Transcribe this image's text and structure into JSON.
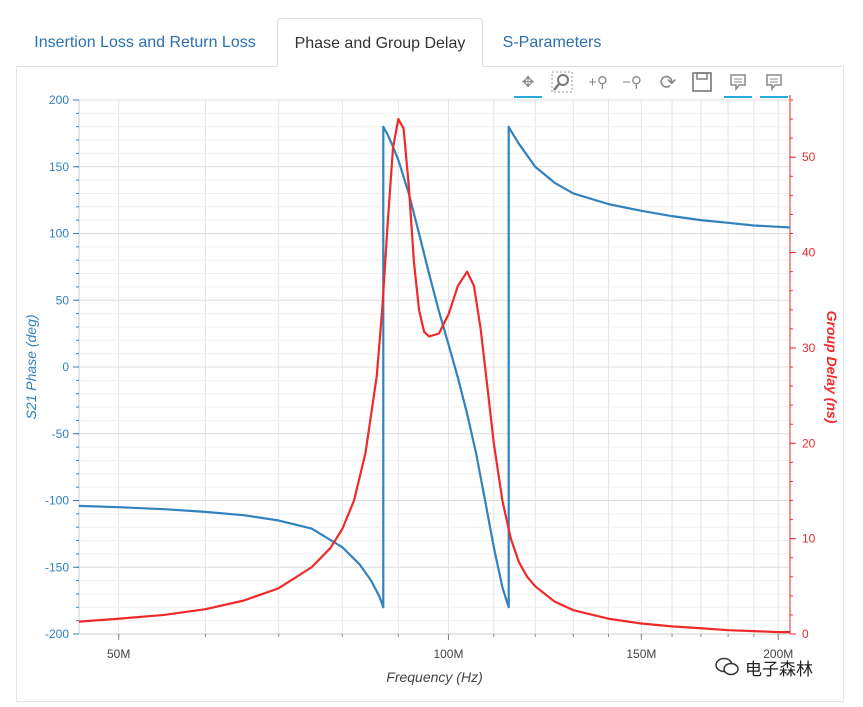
{
  "tabs": [
    {
      "label": "Insertion Loss and Return Loss",
      "active": false
    },
    {
      "label": "Phase and Group Delay",
      "active": true
    },
    {
      "label": "S-Parameters",
      "active": false
    }
  ],
  "toolbar": {
    "tools": [
      "pan-icon",
      "box-zoom-icon",
      "zoom-in-icon",
      "zoom-out-icon",
      "reset-icon",
      "save-icon",
      "hover-icon",
      "hover-icon"
    ],
    "pan_symbol": "✥",
    "zoom_in_symbol": "+⚲",
    "zoom_out_symbol": "−⚲",
    "reset_symbol": "⟳"
  },
  "watermark": {
    "text": "电子森林"
  },
  "colors": {
    "phase": "#3182bd",
    "delay": "#ee2a2a",
    "grid": "#e5e5e5",
    "axis_text": "#444444"
  },
  "chart_data": {
    "type": "line",
    "xlabel": "Frequency (Hz)",
    "ylabel_left": "S21 Phase (deg)",
    "ylabel_right": "Group Delay (ns)",
    "xscale": "log",
    "xlim": [
      46000000,
      205000000
    ],
    "ylim_left": [
      -200,
      200
    ],
    "ylim_right": [
      0,
      56
    ],
    "x_ticks": [
      50000000,
      100000000,
      150000000,
      200000000
    ],
    "x_tick_labels": [
      "50M",
      "100M",
      "150M",
      "200M"
    ],
    "y_left_ticks": [
      -200,
      -150,
      -100,
      -50,
      0,
      50,
      100,
      150,
      200
    ],
    "y_left_tick_labels": [
      "-200",
      "-150",
      "-100",
      "-50",
      "0",
      "50",
      "100",
      "150",
      "200"
    ],
    "y_right_ticks": [
      0,
      10,
      20,
      30,
      40,
      50
    ],
    "y_right_tick_labels": [
      "0",
      "10",
      "20",
      "30",
      "40",
      "50"
    ],
    "grid": true,
    "series": [
      {
        "axis": "left",
        "x": [
          46000000,
          50000000,
          55000000,
          60000000,
          65000000,
          70000000,
          75000000,
          80000000,
          83000000,
          85000000,
          86500000,
          87200000,
          87200001,
          88000000,
          89000000,
          90000000,
          92000000,
          94000000,
          96000000,
          98000000,
          100000000,
          102000000,
          104000000,
          106000000,
          108000000,
          110000000,
          112000000,
          113500000,
          113500001,
          114000000,
          116000000,
          120000000,
          125000000,
          130000000,
          140000000,
          150000000,
          160000000,
          170000000,
          180000000,
          190000000,
          200000000,
          205000000
        ],
        "y": [
          -104,
          -105,
          -106.5,
          -108.5,
          -111,
          -115,
          -121,
          -135,
          -148,
          -160,
          -172,
          -180,
          180,
          174,
          165,
          155,
          130,
          100,
          70,
          42,
          17,
          -8,
          -35,
          -65,
          -100,
          -135,
          -165,
          -180,
          180,
          177,
          167,
          150,
          138,
          130,
          122,
          117,
          113,
          110,
          108,
          106,
          105,
          104.5
        ]
      },
      {
        "axis": "right",
        "x": [
          46000000,
          50000000,
          55000000,
          60000000,
          65000000,
          70000000,
          75000000,
          78000000,
          80000000,
          82000000,
          84000000,
          86000000,
          87000000,
          88000000,
          89000000,
          90000000,
          91000000,
          92000000,
          93000000,
          94000000,
          95000000,
          96000000,
          98000000,
          100000000,
          102000000,
          104000000,
          105500000,
          107000000,
          108500000,
          110000000,
          112000000,
          114000000,
          116000000,
          118000000,
          120000000,
          125000000,
          130000000,
          140000000,
          150000000,
          160000000,
          170000000,
          180000000,
          190000000,
          200000000,
          205000000
        ],
        "y": [
          1.3,
          1.6,
          2,
          2.6,
          3.5,
          4.8,
          7,
          9,
          11,
          14,
          19,
          27,
          34,
          43,
          51,
          54,
          53,
          47,
          39,
          34,
          31.7,
          31.2,
          31.5,
          33.5,
          36.5,
          38,
          36.5,
          32,
          26,
          20,
          14,
          10,
          7.5,
          6,
          5,
          3.4,
          2.5,
          1.6,
          1.1,
          0.8,
          0.6,
          0.4,
          0.3,
          0.2,
          0.2
        ]
      }
    ]
  }
}
